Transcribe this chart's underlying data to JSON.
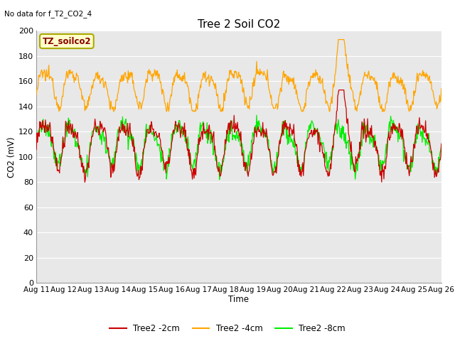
{
  "title": "Tree 2 Soil CO2",
  "subtitle": "No data for f_T2_CO2_4",
  "xlabel": "Time",
  "ylabel": "CO2 (mV)",
  "legend_label": "TZ_soilco2",
  "ylim": [
    0,
    200
  ],
  "yticks": [
    0,
    20,
    40,
    60,
    80,
    100,
    120,
    140,
    160,
    180,
    200
  ],
  "xtick_labels": [
    "Aug 11",
    "Aug 12",
    "Aug 13",
    "Aug 14",
    "Aug 15",
    "Aug 16",
    "Aug 17",
    "Aug 18",
    "Aug 19",
    "Aug 20",
    "Aug 21",
    "Aug 22",
    "Aug 23",
    "Aug 24",
    "Aug 25",
    "Aug 26"
  ],
  "colors": {
    "red": "#CC0000",
    "orange": "#FFA500",
    "green": "#00EE00",
    "background": "#E8E8E8"
  },
  "legend_entries": [
    "Tree2 -2cm",
    "Tree2 -4cm",
    "Tree2 -8cm"
  ],
  "legend_colors": [
    "#CC0000",
    "#FFA500",
    "#00EE00"
  ],
  "box_facecolor": "#FFFFCC",
  "box_edgecolor": "#AAAA00",
  "box_textcolor": "#880000"
}
